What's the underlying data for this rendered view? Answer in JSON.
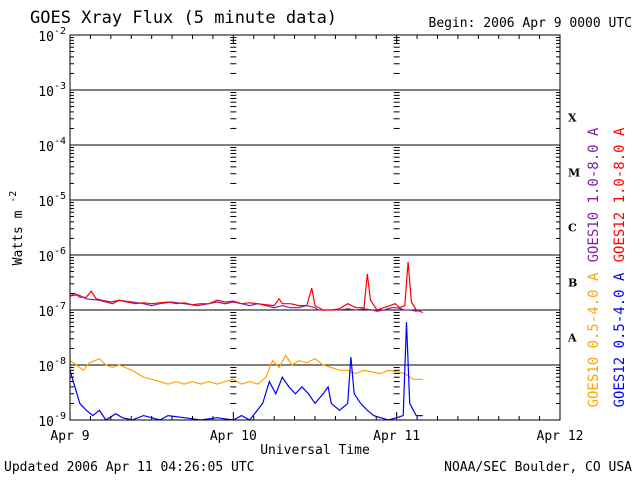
{
  "header": {
    "title": "GOES Xray Flux (5 minute data)",
    "begin": "Begin:  2006 Apr 9 0000 UTC"
  },
  "footer": {
    "updated": "Updated 2006 Apr 11 04:26:05 UTC",
    "source": "NOAA/SEC Boulder, CO USA"
  },
  "chart_data": {
    "type": "line",
    "title": "GOES Xray Flux (5 minute data)",
    "xlabel": "Universal Time",
    "ylabel": "Watts m",
    "ylabel_sup": "-2",
    "yscale": "log",
    "ylim": [
      1e-09,
      0.01
    ],
    "xlim_days": [
      0,
      3
    ],
    "x_ticks": [
      {
        "label": "Apr 9",
        "day": 0
      },
      {
        "label": "Apr 10",
        "day": 1
      },
      {
        "label": "Apr 11",
        "day": 2
      },
      {
        "label": "Apr 12",
        "day": 3
      }
    ],
    "y_ticks": [
      {
        "base": "10",
        "exp": "-9",
        "exponent": -9
      },
      {
        "base": "10",
        "exp": "-8",
        "exponent": -8
      },
      {
        "base": "10",
        "exp": "-7",
        "exponent": -7
      },
      {
        "base": "10",
        "exp": "-6",
        "exponent": -6
      },
      {
        "base": "10",
        "exp": "-5",
        "exponent": -5
      },
      {
        "base": "10",
        "exp": "-4",
        "exponent": -4
      },
      {
        "base": "10",
        "exp": "-3",
        "exponent": -3
      },
      {
        "base": "10",
        "exp": "-2",
        "exponent": -2
      }
    ],
    "flare_classes": [
      {
        "label": "A",
        "exponent": -7.5
      },
      {
        "label": "B",
        "exponent": -6.5
      },
      {
        "label": "C",
        "exponent": -5.5
      },
      {
        "label": "M",
        "exponent": -4.5
      },
      {
        "label": "X",
        "exponent": -3.5
      }
    ],
    "grid": true,
    "series": [
      {
        "name": "GOES10 1.0-8.0 A",
        "color": "#8020a0",
        "points": [
          [
            0,
            1.8e-07
          ],
          [
            0.05,
            1.9e-07
          ],
          [
            0.1,
            1.6e-07
          ],
          [
            0.18,
            1.5e-07
          ],
          [
            0.26,
            1.3e-07
          ],
          [
            0.3,
            1.5e-07
          ],
          [
            0.38,
            1.4e-07
          ],
          [
            0.45,
            1.3e-07
          ],
          [
            0.5,
            1.2e-07
          ],
          [
            0.55,
            1.3e-07
          ],
          [
            0.62,
            1.4e-07
          ],
          [
            0.7,
            1.3e-07
          ],
          [
            0.78,
            1.2e-07
          ],
          [
            0.85,
            1.3e-07
          ],
          [
            0.9,
            1.4e-07
          ],
          [
            0.95,
            1.3e-07
          ],
          [
            1.0,
            1.4e-07
          ],
          [
            1.05,
            1.3e-07
          ],
          [
            1.1,
            1.2e-07
          ],
          [
            1.15,
            1.3e-07
          ],
          [
            1.2,
            1.2e-07
          ],
          [
            1.25,
            1.1e-07
          ],
          [
            1.3,
            1.2e-07
          ],
          [
            1.35,
            1.1e-07
          ],
          [
            1.4,
            1.1e-07
          ],
          [
            1.45,
            1.2e-07
          ],
          [
            1.5,
            1.1e-07
          ],
          [
            1.52,
            1e-07
          ],
          [
            1.55,
            1e-07
          ],
          [
            1.6,
            1e-07
          ],
          [
            1.65,
            1e-07
          ],
          [
            1.7,
            1.05e-07
          ],
          [
            1.75,
            1e-07
          ],
          [
            1.8,
            1.05e-07
          ],
          [
            1.85,
            1e-07
          ],
          [
            1.88,
            9.5e-08
          ],
          [
            1.92,
            1e-07
          ],
          [
            1.97,
            1.1e-07
          ],
          [
            2.0,
            1.1e-07
          ],
          [
            2.05,
            1e-07
          ],
          [
            2.08,
            1e-07
          ],
          [
            2.12,
            9.5e-08
          ],
          [
            2.16,
            1e-07
          ]
        ]
      },
      {
        "name": "GOES12 1.0-8.0 A",
        "color": "#ff0000",
        "points": [
          [
            0,
            1.8e-07
          ],
          [
            0.03,
            2e-07
          ],
          [
            0.06,
            1.7e-07
          ],
          [
            0.1,
            1.7e-07
          ],
          [
            0.13,
            2.2e-07
          ],
          [
            0.16,
            1.6e-07
          ],
          [
            0.2,
            1.5e-07
          ],
          [
            0.25,
            1.4e-07
          ],
          [
            0.3,
            1.5e-07
          ],
          [
            0.35,
            1.4e-07
          ],
          [
            0.4,
            1.3e-07
          ],
          [
            0.45,
            1.35e-07
          ],
          [
            0.5,
            1.3e-07
          ],
          [
            0.55,
            1.35e-07
          ],
          [
            0.6,
            1.4e-07
          ],
          [
            0.65,
            1.3e-07
          ],
          [
            0.7,
            1.35e-07
          ],
          [
            0.75,
            1.25e-07
          ],
          [
            0.8,
            1.3e-07
          ],
          [
            0.85,
            1.3e-07
          ],
          [
            0.9,
            1.5e-07
          ],
          [
            0.95,
            1.4e-07
          ],
          [
            1.0,
            1.45e-07
          ],
          [
            1.05,
            1.3e-07
          ],
          [
            1.1,
            1.35e-07
          ],
          [
            1.15,
            1.3e-07
          ],
          [
            1.2,
            1.25e-07
          ],
          [
            1.25,
            1.2e-07
          ],
          [
            1.28,
            1.6e-07
          ],
          [
            1.3,
            1.3e-07
          ],
          [
            1.35,
            1.3e-07
          ],
          [
            1.4,
            1.2e-07
          ],
          [
            1.45,
            1.2e-07
          ],
          [
            1.48,
            2.5e-07
          ],
          [
            1.5,
            1.2e-07
          ],
          [
            1.55,
            1e-07
          ],
          [
            1.6,
            1e-07
          ],
          [
            1.65,
            1.05e-07
          ],
          [
            1.7,
            1.3e-07
          ],
          [
            1.75,
            1.1e-07
          ],
          [
            1.8,
            1.1e-07
          ],
          [
            1.82,
            4.5e-07
          ],
          [
            1.84,
            1.5e-07
          ],
          [
            1.88,
            1e-07
          ],
          [
            1.92,
            1.1e-07
          ],
          [
            1.96,
            1.2e-07
          ],
          [
            1.99,
            1.3e-07
          ],
          [
            2.02,
            1.1e-07
          ],
          [
            2.05,
            1.2e-07
          ],
          [
            2.07,
            7.5e-07
          ],
          [
            2.09,
            1.4e-07
          ],
          [
            2.12,
            1e-07
          ],
          [
            2.16,
            9e-08
          ]
        ]
      },
      {
        "name": "GOES10 0.5-4.0 A",
        "color": "#ffa500",
        "points": [
          [
            0,
            1.2e-08
          ],
          [
            0.04,
            1e-08
          ],
          [
            0.08,
            8e-09
          ],
          [
            0.12,
            1.1e-08
          ],
          [
            0.18,
            1.3e-08
          ],
          [
            0.22,
            1e-08
          ],
          [
            0.26,
            9e-09
          ],
          [
            0.3,
            1e-08
          ],
          [
            0.38,
            8e-09
          ],
          [
            0.45,
            6e-09
          ],
          [
            0.5,
            5.5e-09
          ],
          [
            0.55,
            5e-09
          ],
          [
            0.6,
            4.5e-09
          ],
          [
            0.65,
            5e-09
          ],
          [
            0.7,
            4.5e-09
          ],
          [
            0.75,
            5e-09
          ],
          [
            0.8,
            4.5e-09
          ],
          [
            0.85,
            5e-09
          ],
          [
            0.9,
            4.5e-09
          ],
          [
            0.95,
            5e-09
          ],
          [
            1.0,
            5.5e-09
          ],
          [
            1.05,
            4.5e-09
          ],
          [
            1.1,
            5e-09
          ],
          [
            1.15,
            4.5e-09
          ],
          [
            1.2,
            6e-09
          ],
          [
            1.24,
            1.2e-08
          ],
          [
            1.28,
            9e-09
          ],
          [
            1.32,
            1.5e-08
          ],
          [
            1.36,
            1e-08
          ],
          [
            1.4,
            1.2e-08
          ],
          [
            1.45,
            1.1e-08
          ],
          [
            1.5,
            1.3e-08
          ],
          [
            1.55,
            1e-08
          ],
          [
            1.6,
            9e-09
          ],
          [
            1.65,
            8e-09
          ],
          [
            1.7,
            8e-09
          ],
          [
            1.75,
            7e-09
          ],
          [
            1.8,
            8e-09
          ],
          [
            1.85,
            7.5e-09
          ],
          [
            1.9,
            7e-09
          ],
          [
            1.95,
            8e-09
          ],
          [
            2.0,
            7.5e-09
          ],
          [
            2.05,
            7e-09
          ],
          [
            2.1,
            5.5e-09
          ],
          [
            2.16,
            5.5e-09
          ]
        ]
      },
      {
        "name": "GOES12 0.5-4.0 A",
        "color": "#0000ff",
        "points": [
          [
            0,
            8e-09
          ],
          [
            0.03,
            4e-09
          ],
          [
            0.06,
            2e-09
          ],
          [
            0.1,
            1.5e-09
          ],
          [
            0.14,
            1.2e-09
          ],
          [
            0.18,
            1.5e-09
          ],
          [
            0.22,
            1e-09
          ],
          [
            0.28,
            1.3e-09
          ],
          [
            0.32,
            1.1e-09
          ],
          [
            0.38,
            1e-09
          ],
          [
            0.45,
            1.2e-09
          ],
          [
            0.5,
            1.1e-09
          ],
          [
            0.55,
            1e-09
          ],
          [
            0.6,
            1.2e-09
          ],
          [
            0.7,
            1.1e-09
          ],
          [
            0.8,
            1e-09
          ],
          [
            0.9,
            1.1e-09
          ],
          [
            1.0,
            1e-09
          ],
          [
            1.05,
            1.2e-09
          ],
          [
            1.1,
            1e-09
          ],
          [
            1.18,
            2e-09
          ],
          [
            1.22,
            5e-09
          ],
          [
            1.26,
            3e-09
          ],
          [
            1.3,
            6e-09
          ],
          [
            1.34,
            4e-09
          ],
          [
            1.38,
            3e-09
          ],
          [
            1.42,
            4e-09
          ],
          [
            1.46,
            3e-09
          ],
          [
            1.5,
            2e-09
          ],
          [
            1.55,
            3e-09
          ],
          [
            1.58,
            4e-09
          ],
          [
            1.6,
            2e-09
          ],
          [
            1.65,
            1.5e-09
          ],
          [
            1.7,
            2e-09
          ],
          [
            1.72,
            1.4e-08
          ],
          [
            1.74,
            3e-09
          ],
          [
            1.78,
            2e-09
          ],
          [
            1.82,
            1.5e-09
          ],
          [
            1.86,
            1.2e-09
          ],
          [
            1.9,
            1.1e-09
          ],
          [
            1.95,
            1e-09
          ],
          [
            2.0,
            1.1e-09
          ],
          [
            2.04,
            1.2e-09
          ],
          [
            2.06,
            6e-08
          ],
          [
            2.08,
            2e-09
          ],
          [
            2.12,
            1.2e-09
          ],
          [
            2.16,
            1.2e-09
          ]
        ]
      }
    ]
  }
}
